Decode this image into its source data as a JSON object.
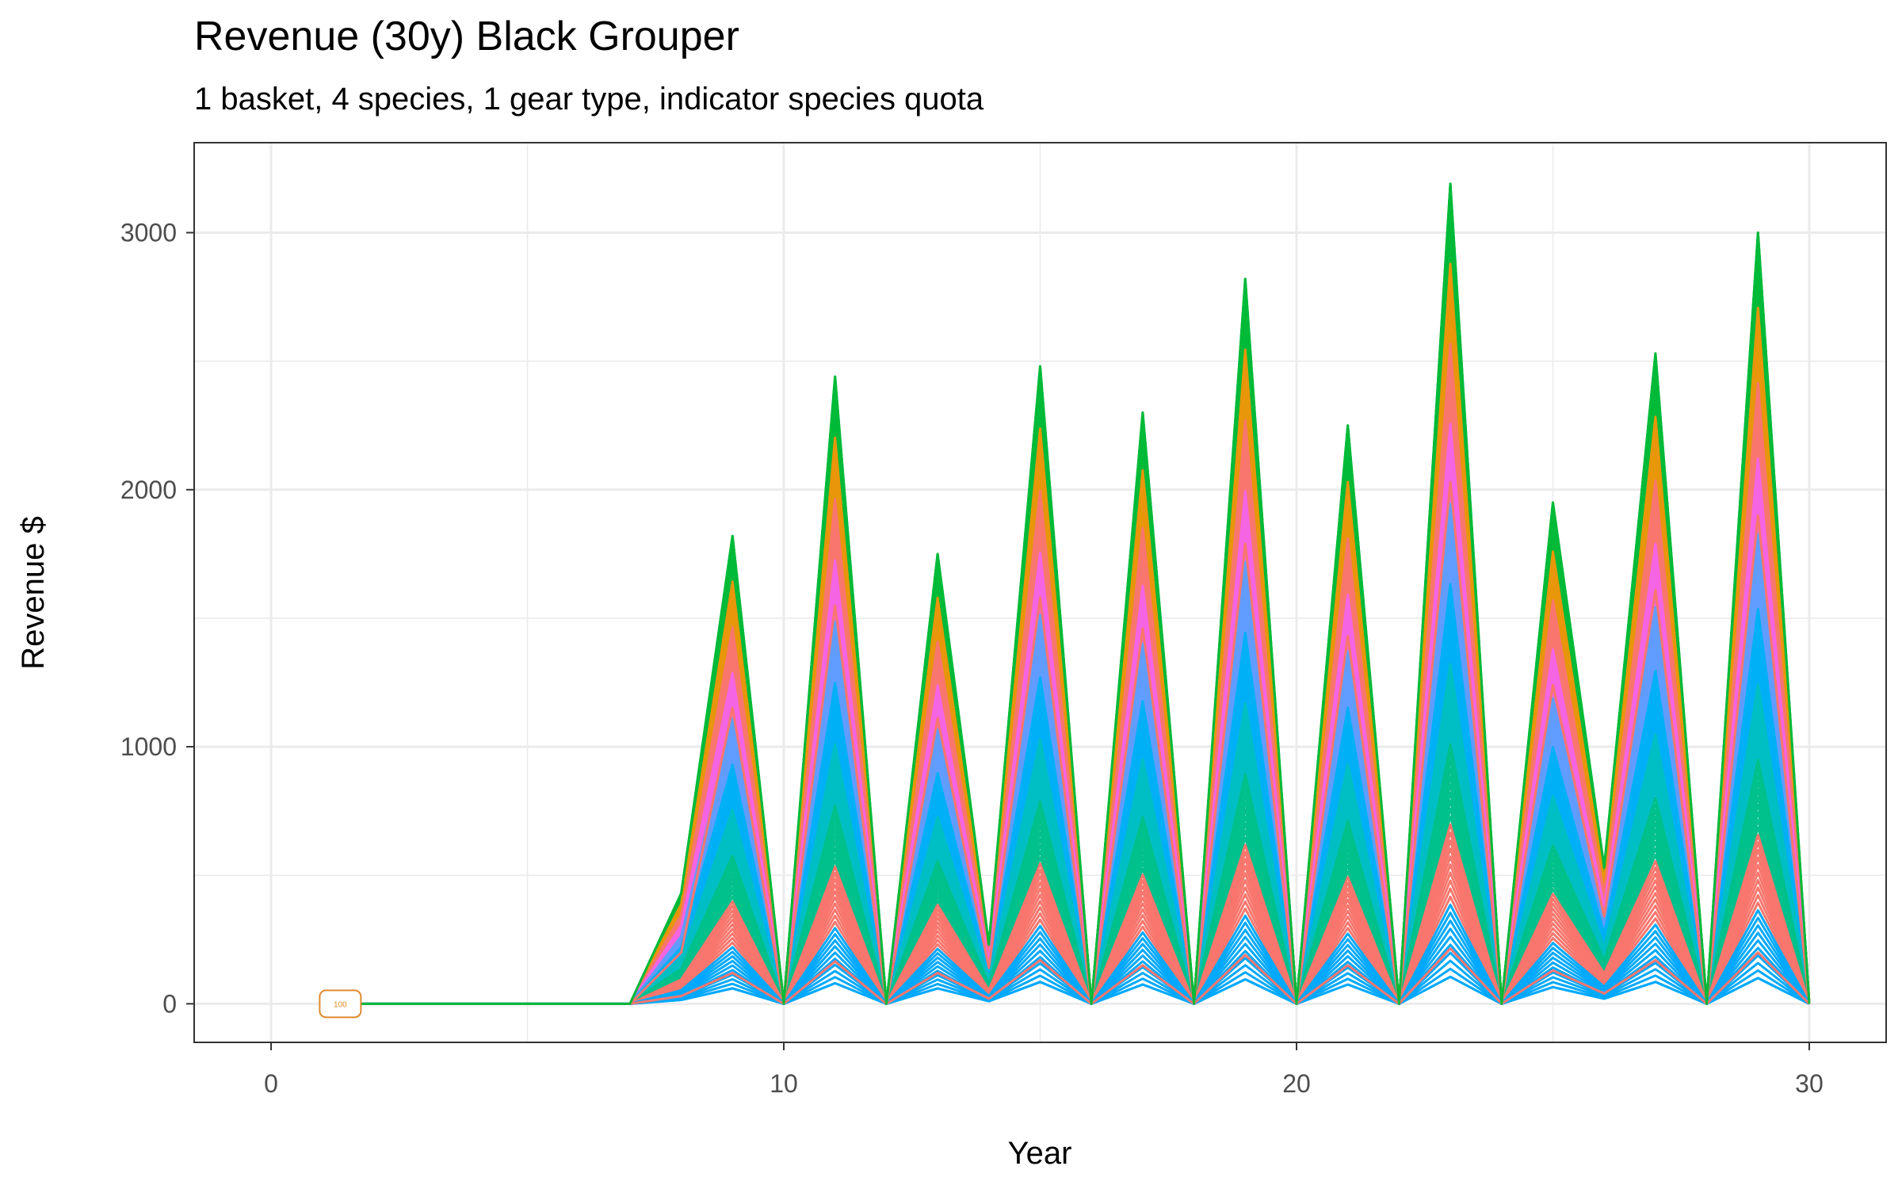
{
  "chart_data": {
    "type": "line",
    "title": "Revenue (30y) Black Grouper",
    "subtitle": "1 basket, 4 species, 1 gear type, indicator species quota",
    "xlabel": "Year",
    "ylabel": "Revenue $",
    "xlim": [
      -1.5,
      31.5
    ],
    "ylim": [
      -150,
      3350
    ],
    "x_ticks": [
      0,
      10,
      20,
      30
    ],
    "y_ticks": [
      0,
      1000,
      2000,
      3000
    ],
    "x_tick_labels": [
      "0",
      "10",
      "20",
      "30"
    ],
    "y_tick_labels": [
      "0",
      "1000",
      "2000",
      "3000"
    ],
    "grid": true,
    "legend": "none",
    "annotation": {
      "label": "100",
      "x": 1.35,
      "y": 0
    },
    "series_count": 100,
    "years": [
      7,
      8,
      9,
      10,
      11,
      12,
      13,
      14,
      15,
      16,
      17,
      18,
      19,
      20,
      21,
      22,
      23,
      24,
      25,
      26,
      27,
      28,
      29,
      30
    ],
    "series_flat_from_year": 1.35,
    "envelope_min": [
      0,
      15,
      60,
      0,
      80,
      0,
      60,
      10,
      85,
      0,
      75,
      0,
      95,
      0,
      75,
      0,
      105,
      0,
      65,
      20,
      85,
      0,
      100,
      0
    ],
    "envelope_max": [
      0,
      430,
      1820,
      0,
      2440,
      0,
      1750,
      230,
      2480,
      0,
      2300,
      0,
      2820,
      0,
      2250,
      0,
      3190,
      0,
      1950,
      530,
      2530,
      0,
      3000,
      0
    ],
    "series_colors": [
      "#00ba38",
      "#e8960a",
      "#f8766d",
      "#f564e3",
      "#619cff",
      "#00b0f6",
      "#00bfc4",
      "#00c08b",
      "#f8766d",
      "#00a9ff"
    ],
    "series": [
      {
        "values": [
          0,
          15,
          60,
          0,
          80,
          0,
          60,
          10,
          85,
          0,
          75,
          0,
          95,
          0,
          75,
          0,
          105,
          0,
          65,
          20,
          85,
          0,
          100,
          0
        ]
      },
      {
        "values": [
          0,
          30,
          120,
          0,
          165,
          0,
          120,
          20,
          170,
          0,
          150,
          0,
          190,
          0,
          150,
          0,
          215,
          0,
          130,
          40,
          170,
          0,
          200,
          0
        ]
      },
      {
        "values": [
          0,
          200,
          1150,
          0,
          1550,
          0,
          1110,
          140,
          1580,
          0,
          1460,
          0,
          1790,
          0,
          1430,
          0,
          2030,
          0,
          1240,
          340,
          1610,
          0,
          1900,
          0
        ]
      },
      {
        "values": [
          0,
          430,
          1820,
          0,
          2440,
          0,
          1750,
          230,
          2480,
          0,
          2300,
          0,
          2820,
          0,
          2250,
          0,
          3190,
          0,
          1950,
          530,
          2530,
          0,
          3000,
          0
        ]
      }
    ]
  }
}
